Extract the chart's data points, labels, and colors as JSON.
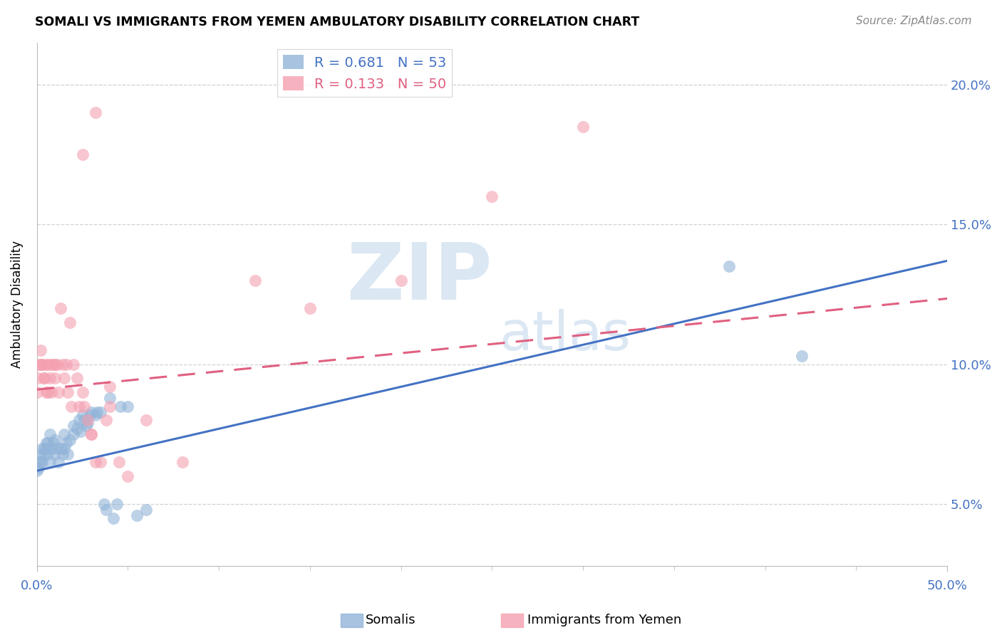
{
  "title": "SOMALI VS IMMIGRANTS FROM YEMEN AMBULATORY DISABILITY CORRELATION CHART",
  "source": "Source: ZipAtlas.com",
  "ylabel": "Ambulatory Disability",
  "legend_1_R": "R = 0.681",
  "legend_1_N": "N = 53",
  "legend_2_R": "R = 0.133",
  "legend_2_N": "N = 50",
  "blue_color": "#92B4D8",
  "pink_color": "#F4A0B0",
  "blue_line_color": "#4472C4",
  "pink_line_color": "#E06080",
  "xmin": 0.0,
  "xmax": 0.5,
  "ymin": 0.028,
  "ymax": 0.215,
  "ytick_vals": [
    0.05,
    0.1,
    0.15,
    0.2
  ],
  "ytick_labels": [
    "5.0%",
    "10.0%",
    "15.0%",
    "20.0%"
  ],
  "som_intercept": 0.062,
  "som_slope": 0.15,
  "yem_intercept": 0.091,
  "yem_slope": 0.065,
  "somali_x": [
    0.0,
    0.001,
    0.001,
    0.002,
    0.002,
    0.003,
    0.003,
    0.004,
    0.004,
    0.005,
    0.005,
    0.006,
    0.006,
    0.007,
    0.007,
    0.008,
    0.009,
    0.01,
    0.01,
    0.011,
    0.012,
    0.013,
    0.014,
    0.015,
    0.015,
    0.016,
    0.017,
    0.018,
    0.02,
    0.02,
    0.022,
    0.023,
    0.024,
    0.025,
    0.026,
    0.027,
    0.028,
    0.029,
    0.03,
    0.032,
    0.033,
    0.035,
    0.037,
    0.038,
    0.04,
    0.042,
    0.044,
    0.046,
    0.05,
    0.055,
    0.06,
    0.38,
    0.42
  ],
  "somali_y": [
    0.062,
    0.063,
    0.065,
    0.065,
    0.068,
    0.065,
    0.07,
    0.07,
    0.068,
    0.07,
    0.072,
    0.072,
    0.068,
    0.075,
    0.065,
    0.07,
    0.072,
    0.068,
    0.073,
    0.07,
    0.065,
    0.07,
    0.068,
    0.075,
    0.07,
    0.072,
    0.068,
    0.073,
    0.075,
    0.078,
    0.077,
    0.08,
    0.076,
    0.082,
    0.08,
    0.078,
    0.079,
    0.082,
    0.083,
    0.082,
    0.083,
    0.083,
    0.05,
    0.048,
    0.088,
    0.045,
    0.05,
    0.085,
    0.085,
    0.046,
    0.048,
    0.135,
    0.103
  ],
  "yemen_x": [
    0.0,
    0.001,
    0.001,
    0.002,
    0.002,
    0.003,
    0.003,
    0.004,
    0.004,
    0.005,
    0.005,
    0.006,
    0.006,
    0.007,
    0.008,
    0.008,
    0.009,
    0.01,
    0.01,
    0.011,
    0.012,
    0.013,
    0.014,
    0.015,
    0.016,
    0.017,
    0.018,
    0.019,
    0.02,
    0.022,
    0.023,
    0.025,
    0.026,
    0.028,
    0.03,
    0.032,
    0.035,
    0.038,
    0.04,
    0.045,
    0.05,
    0.06,
    0.08,
    0.12,
    0.15,
    0.2,
    0.25,
    0.3,
    0.04,
    0.03
  ],
  "yemen_y": [
    0.09,
    0.095,
    0.1,
    0.1,
    0.105,
    0.1,
    0.1,
    0.095,
    0.095,
    0.09,
    0.1,
    0.1,
    0.09,
    0.095,
    0.1,
    0.09,
    0.1,
    0.095,
    0.1,
    0.1,
    0.09,
    0.12,
    0.1,
    0.095,
    0.1,
    0.09,
    0.115,
    0.085,
    0.1,
    0.095,
    0.085,
    0.09,
    0.085,
    0.08,
    0.075,
    0.065,
    0.065,
    0.08,
    0.085,
    0.065,
    0.06,
    0.08,
    0.065,
    0.13,
    0.12,
    0.13,
    0.16,
    0.185,
    0.092,
    0.075
  ]
}
